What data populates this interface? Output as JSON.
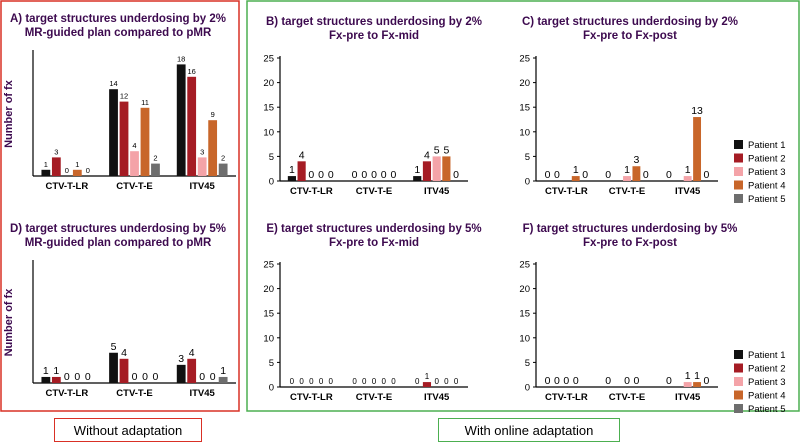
{
  "colors": {
    "left_frame": "#d93025",
    "right_frame": "#4caf50",
    "title_color": "#3d0a4f",
    "ylabel_color": "#3d0a4f"
  },
  "captions": {
    "left": "Without adaptation",
    "right": "With online adaptation"
  },
  "legend": {
    "entries": [
      {
        "name": "Patient 1",
        "color": "#111111"
      },
      {
        "name": "Patient 2",
        "color": "#a51c24"
      },
      {
        "name": "Patient 3",
        "color": "#f4a3a8"
      },
      {
        "name": "Patient 4",
        "color": "#c8662a"
      },
      {
        "name": "Patient 5",
        "color": "#6e6e6e"
      }
    ]
  },
  "chart_data": [
    {
      "id": "A",
      "type": "bar",
      "title": "A) target structures underdosing by 2%",
      "subtitle": "MR-guided plan compared to pMR",
      "ylabel": "Number of fx",
      "ylim": [
        0,
        20
      ],
      "yticks": [],
      "categories": [
        "CTV-T-LR",
        "CTV-T-E",
        "ITV45"
      ],
      "series": [
        {
          "name": "Patient 1",
          "values": [
            1,
            14,
            18
          ]
        },
        {
          "name": "Patient 2",
          "values": [
            3,
            12,
            16
          ]
        },
        {
          "name": "Patient 3",
          "values": [
            0,
            4,
            3
          ]
        },
        {
          "name": "Patient 4",
          "values": [
            1,
            11,
            9
          ]
        },
        {
          "name": "Patient 5",
          "values": [
            0,
            2,
            2
          ]
        }
      ],
      "data_labels": [
        [
          "1",
          "3",
          "0",
          "1",
          "0"
        ],
        [
          "14",
          "12",
          "4",
          "11",
          "2"
        ],
        [
          "18",
          "16",
          "3",
          "9",
          "2"
        ]
      ]
    },
    {
      "id": "B",
      "type": "bar",
      "title": "B) target structures underdosing by 2%",
      "subtitle": "Fx-pre to Fx-mid",
      "ylabel": "",
      "ylim": [
        0,
        25
      ],
      "yticks": [
        "0",
        "5",
        "10",
        "15",
        "20",
        "25"
      ],
      "categories": [
        "CTV-T-LR",
        "CTV-T-E",
        "ITV45"
      ],
      "series": [
        {
          "name": "Patient 1",
          "values": [
            1,
            0,
            1
          ]
        },
        {
          "name": "Patient 2",
          "values": [
            4,
            0,
            4
          ]
        },
        {
          "name": "Patient 3",
          "values": [
            0,
            0,
            5
          ]
        },
        {
          "name": "Patient 4",
          "values": [
            0,
            0,
            5
          ]
        },
        {
          "name": "Patient 5",
          "values": [
            0,
            0,
            0
          ]
        }
      ],
      "data_labels": [
        [
          "1",
          "4",
          "0",
          "0",
          "0"
        ],
        [
          "0",
          "0",
          "0",
          "0",
          "0"
        ],
        [
          "1",
          "4",
          "5",
          "5",
          "0"
        ]
      ]
    },
    {
      "id": "C",
      "type": "bar",
      "title": "C) target structures underdosing by 2%",
      "subtitle": "Fx-pre to Fx-post",
      "ylabel": "",
      "ylim": [
        0,
        25
      ],
      "yticks": [
        "0",
        "5",
        "10",
        "15",
        "20",
        "25"
      ],
      "categories": [
        "CTV-T-LR",
        "CTV-T-E",
        "ITV45"
      ],
      "series": [
        {
          "name": "Patient 1",
          "values": [
            0,
            0,
            0
          ]
        },
        {
          "name": "Patient 2",
          "values": [
            0,
            0,
            0
          ]
        },
        {
          "name": "Patient 3",
          "values": [
            0,
            1,
            1
          ]
        },
        {
          "name": "Patient 4",
          "values": [
            1,
            3,
            13
          ]
        },
        {
          "name": "Patient 5",
          "values": [
            0,
            0,
            0
          ]
        }
      ],
      "data_labels": [
        [
          "0",
          "0",
          "",
          "1",
          "0"
        ],
        [
          "0",
          "",
          "1",
          "3",
          "0"
        ],
        [
          "0",
          "",
          "1",
          "13",
          "0"
        ]
      ]
    },
    {
      "id": "D",
      "type": "bar",
      "title": "D) target structures underdosing by 5%",
      "subtitle": "MR-guided plan compared to pMR",
      "ylabel": "Number of fx",
      "ylim": [
        0,
        20
      ],
      "yticks": [],
      "categories": [
        "CTV-T-LR",
        "CTV-T-E",
        "ITV45"
      ],
      "series": [
        {
          "name": "Patient 1",
          "values": [
            1,
            5,
            3
          ]
        },
        {
          "name": "Patient 2",
          "values": [
            1,
            4,
            4
          ]
        },
        {
          "name": "Patient 3",
          "values": [
            0,
            0,
            0
          ]
        },
        {
          "name": "Patient 4",
          "values": [
            0,
            0,
            0
          ]
        },
        {
          "name": "Patient 5",
          "values": [
            0,
            0,
            1
          ]
        }
      ],
      "data_labels": [
        [
          "1",
          "1",
          "0",
          "0",
          "0"
        ],
        [
          "5",
          "4",
          "0",
          "0",
          "0"
        ],
        [
          "3",
          "4",
          "0",
          "0",
          "1"
        ]
      ]
    },
    {
      "id": "E",
      "type": "bar",
      "title": "E) target structures underdosing by 5%",
      "subtitle": "Fx-pre to Fx-mid",
      "ylabel": "",
      "ylim": [
        0,
        25
      ],
      "yticks": [
        "0",
        "5",
        "10",
        "15",
        "20",
        "25"
      ],
      "categories": [
        "CTV-T-LR",
        "CTV-T-E",
        "ITV45"
      ],
      "series": [
        {
          "name": "Patient 1",
          "values": [
            0,
            0,
            0
          ]
        },
        {
          "name": "Patient 2",
          "values": [
            0,
            0,
            1
          ]
        },
        {
          "name": "Patient 3",
          "values": [
            0,
            0,
            0
          ]
        },
        {
          "name": "Patient 4",
          "values": [
            0,
            0,
            0
          ]
        },
        {
          "name": "Patient 5",
          "values": [
            0,
            0,
            0
          ]
        }
      ],
      "data_labels": [
        [
          "0",
          "0",
          "0",
          "0",
          "0"
        ],
        [
          "0",
          "0",
          "0",
          "0",
          "0"
        ],
        [
          "0",
          "1",
          "0",
          "0",
          "0"
        ]
      ]
    },
    {
      "id": "F",
      "type": "bar",
      "title": "F) target structures underdosing by 5%",
      "subtitle": "Fx-pre to Fx-post",
      "ylabel": "",
      "ylim": [
        0,
        25
      ],
      "yticks": [
        "0",
        "5",
        "10",
        "15",
        "20",
        "25"
      ],
      "categories": [
        "CTV-T-LR",
        "CTV-T-E",
        "ITV45"
      ],
      "series": [
        {
          "name": "Patient 1",
          "values": [
            0,
            0,
            0
          ]
        },
        {
          "name": "Patient 2",
          "values": [
            0,
            0,
            0
          ]
        },
        {
          "name": "Patient 3",
          "values": [
            0,
            0,
            1
          ]
        },
        {
          "name": "Patient 4",
          "values": [
            0,
            0,
            1
          ]
        },
        {
          "name": "Patient 5",
          "values": [
            0,
            0,
            0
          ]
        }
      ],
      "data_labels": [
        [
          "0",
          "0",
          "0",
          "0",
          ""
        ],
        [
          "0",
          "",
          "0",
          "0",
          ""
        ],
        [
          "0",
          "",
          "1",
          "1",
          "0"
        ]
      ]
    }
  ]
}
